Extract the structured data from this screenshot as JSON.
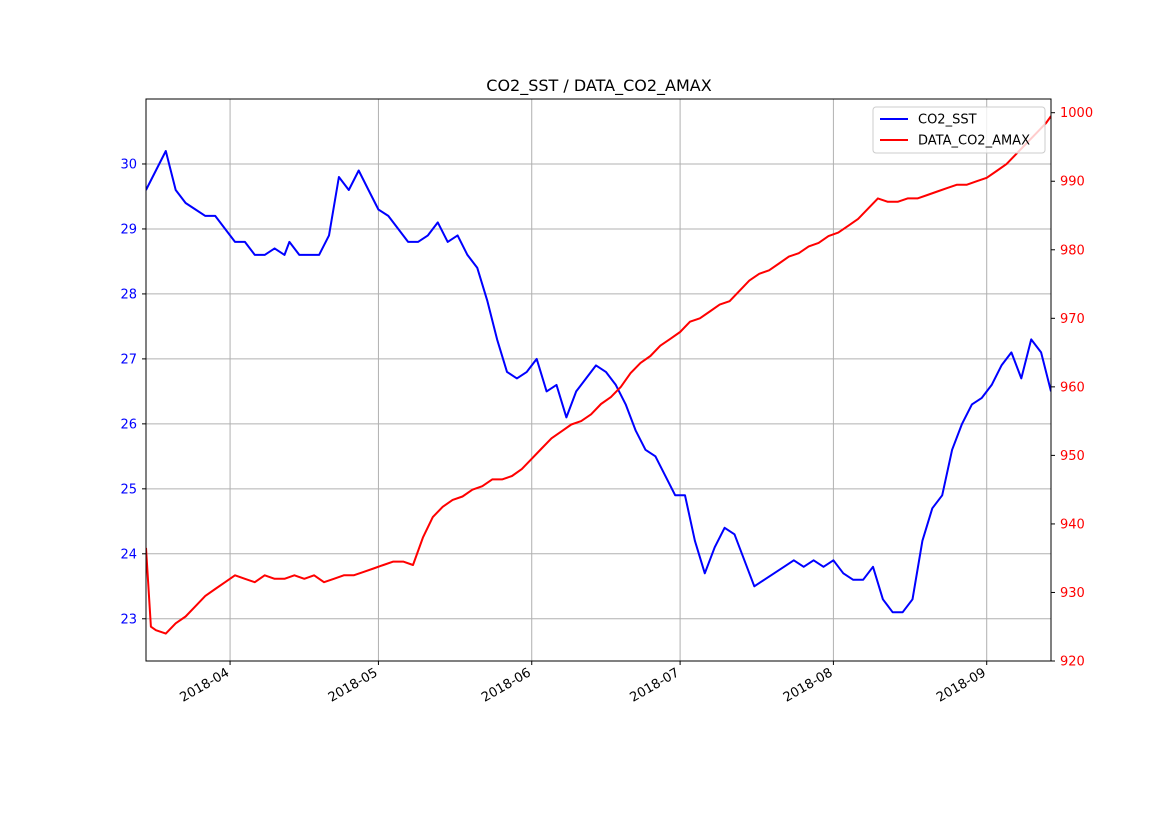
{
  "chart_data": {
    "type": "line",
    "title": "CO2_SST / DATA_CO2_AMAX",
    "xlabel": "",
    "x_ticks": [
      "2018-04",
      "2018-05",
      "2018-06",
      "2018-07",
      "2018-08",
      "2018-09"
    ],
    "xlim": [
      "2018-03-15",
      "2018-09-14"
    ],
    "grid": true,
    "legend_position": "top-right",
    "left_axis": {
      "label": "",
      "ylim": [
        22.35,
        31.0
      ],
      "ticks": [
        "23",
        "24",
        "25",
        "26",
        "27",
        "28",
        "29",
        "30"
      ],
      "color": "#0000ff"
    },
    "right_axis": {
      "label": "",
      "ylim": [
        920,
        1002
      ],
      "ticks": [
        "920",
        "930",
        "940",
        "950",
        "960",
        "970",
        "980",
        "990",
        "1000"
      ],
      "color": "#ff0000"
    },
    "series": [
      {
        "name": "CO2_SST",
        "axis": "left",
        "color": "#0000ff",
        "x": [
          "2018-03-15",
          "2018-03-17",
          "2018-03-19",
          "2018-03-21",
          "2018-03-23",
          "2018-03-25",
          "2018-03-27",
          "2018-03-29",
          "2018-03-31",
          "2018-04-02",
          "2018-04-04",
          "2018-04-06",
          "2018-04-08",
          "2018-04-10",
          "2018-04-12",
          "2018-04-13",
          "2018-04-15",
          "2018-04-17",
          "2018-04-19",
          "2018-04-21",
          "2018-04-23",
          "2018-04-25",
          "2018-04-27",
          "2018-04-29",
          "2018-05-01",
          "2018-05-03",
          "2018-05-05",
          "2018-05-07",
          "2018-05-09",
          "2018-05-11",
          "2018-05-13",
          "2018-05-15",
          "2018-05-17",
          "2018-05-19",
          "2018-05-21",
          "2018-05-23",
          "2018-05-25",
          "2018-05-27",
          "2018-05-29",
          "2018-05-31",
          "2018-06-02",
          "2018-06-04",
          "2018-06-06",
          "2018-06-08",
          "2018-06-10",
          "2018-06-12",
          "2018-06-14",
          "2018-06-16",
          "2018-06-18",
          "2018-06-20",
          "2018-06-22",
          "2018-06-24",
          "2018-06-26",
          "2018-06-28",
          "2018-06-30",
          "2018-07-02",
          "2018-07-04",
          "2018-07-06",
          "2018-07-08",
          "2018-07-10",
          "2018-07-12",
          "2018-07-14",
          "2018-07-16",
          "2018-07-18",
          "2018-07-20",
          "2018-07-22",
          "2018-07-24",
          "2018-07-26",
          "2018-07-28",
          "2018-07-30",
          "2018-08-01",
          "2018-08-03",
          "2018-08-05",
          "2018-08-07",
          "2018-08-09",
          "2018-08-11",
          "2018-08-13",
          "2018-08-15",
          "2018-08-17",
          "2018-08-19",
          "2018-08-21",
          "2018-08-23",
          "2018-08-25",
          "2018-08-27",
          "2018-08-29",
          "2018-08-31",
          "2018-09-02",
          "2018-09-04",
          "2018-09-06",
          "2018-09-08",
          "2018-09-10",
          "2018-09-12",
          "2018-09-14"
        ],
        "values": [
          29.6,
          29.9,
          30.2,
          29.6,
          29.4,
          29.3,
          29.2,
          29.2,
          29.0,
          28.8,
          28.8,
          28.6,
          28.6,
          28.7,
          28.6,
          28.8,
          28.6,
          28.6,
          28.6,
          28.9,
          29.8,
          29.6,
          29.9,
          29.6,
          29.3,
          29.2,
          29.0,
          28.8,
          28.8,
          28.9,
          29.1,
          28.8,
          28.9,
          28.6,
          28.4,
          27.9,
          27.3,
          26.8,
          26.7,
          26.8,
          27.0,
          26.5,
          26.6,
          26.1,
          26.5,
          26.7,
          26.9,
          26.8,
          26.6,
          26.3,
          25.9,
          25.6,
          25.5,
          25.2,
          24.9,
          24.9,
          24.2,
          23.7,
          24.1,
          24.4,
          24.3,
          23.9,
          23.5,
          23.6,
          23.7,
          23.8,
          23.9,
          23.8,
          23.9,
          23.8,
          23.9,
          23.7,
          23.6,
          23.6,
          23.8,
          23.3,
          23.1,
          23.1,
          23.3,
          24.2,
          24.7,
          24.9,
          25.6,
          26.0,
          26.3,
          26.4,
          26.6,
          26.9,
          27.1,
          26.7,
          27.3,
          27.1,
          26.5
        ]
      },
      {
        "name": "DATA_CO2_AMAX",
        "axis": "right",
        "color": "#ff0000",
        "x": [
          "2018-03-15",
          "2018-03-16",
          "2018-03-17",
          "2018-03-19",
          "2018-03-21",
          "2018-03-23",
          "2018-03-25",
          "2018-03-27",
          "2018-03-29",
          "2018-03-31",
          "2018-04-02",
          "2018-04-04",
          "2018-04-06",
          "2018-04-08",
          "2018-04-10",
          "2018-04-12",
          "2018-04-14",
          "2018-04-16",
          "2018-04-18",
          "2018-04-20",
          "2018-04-22",
          "2018-04-24",
          "2018-04-26",
          "2018-04-28",
          "2018-04-30",
          "2018-05-02",
          "2018-05-04",
          "2018-05-06",
          "2018-05-08",
          "2018-05-10",
          "2018-05-12",
          "2018-05-14",
          "2018-05-16",
          "2018-05-18",
          "2018-05-20",
          "2018-05-22",
          "2018-05-24",
          "2018-05-26",
          "2018-05-28",
          "2018-05-30",
          "2018-06-01",
          "2018-06-03",
          "2018-06-05",
          "2018-06-07",
          "2018-06-09",
          "2018-06-11",
          "2018-06-13",
          "2018-06-15",
          "2018-06-17",
          "2018-06-19",
          "2018-06-21",
          "2018-06-23",
          "2018-06-25",
          "2018-06-27",
          "2018-06-29",
          "2018-07-01",
          "2018-07-03",
          "2018-07-05",
          "2018-07-07",
          "2018-07-09",
          "2018-07-11",
          "2018-07-13",
          "2018-07-15",
          "2018-07-17",
          "2018-07-19",
          "2018-07-21",
          "2018-07-23",
          "2018-07-25",
          "2018-07-27",
          "2018-07-29",
          "2018-07-31",
          "2018-08-02",
          "2018-08-04",
          "2018-08-06",
          "2018-08-08",
          "2018-08-10",
          "2018-08-12",
          "2018-08-14",
          "2018-08-16",
          "2018-08-18",
          "2018-08-20",
          "2018-08-22",
          "2018-08-24",
          "2018-08-26",
          "2018-08-28",
          "2018-08-30",
          "2018-09-01",
          "2018-09-03",
          "2018-09-05",
          "2018-09-07",
          "2018-09-09",
          "2018-09-11",
          "2018-09-13",
          "2018-09-14"
        ],
        "values": [
          936.5,
          925.0,
          924.5,
          924.0,
          925.5,
          926.5,
          928.0,
          929.5,
          930.5,
          931.5,
          932.5,
          932.0,
          931.5,
          932.5,
          932.0,
          932.0,
          932.5,
          932.0,
          932.5,
          931.5,
          932.0,
          932.5,
          932.5,
          933.0,
          933.5,
          934.0,
          934.5,
          934.5,
          934.0,
          938.0,
          941.0,
          942.5,
          943.5,
          944.0,
          945.0,
          945.5,
          946.5,
          946.5,
          947.0,
          948.0,
          949.5,
          951.0,
          952.5,
          953.5,
          954.5,
          955.0,
          956.0,
          957.5,
          958.5,
          960.0,
          962.0,
          963.5,
          964.5,
          966.0,
          967.0,
          968.0,
          969.5,
          970.0,
          971.0,
          972.0,
          972.5,
          974.0,
          975.5,
          976.5,
          977.0,
          978.0,
          979.0,
          979.5,
          980.5,
          981.0,
          982.0,
          982.5,
          983.5,
          984.5,
          986.0,
          987.5,
          987.0,
          987.0,
          987.5,
          987.5,
          988.0,
          988.5,
          989.0,
          989.5,
          989.5,
          990.0,
          990.5,
          991.5,
          992.5,
          994.0,
          995.5,
          997.0,
          998.5,
          999.5
        ]
      }
    ]
  }
}
